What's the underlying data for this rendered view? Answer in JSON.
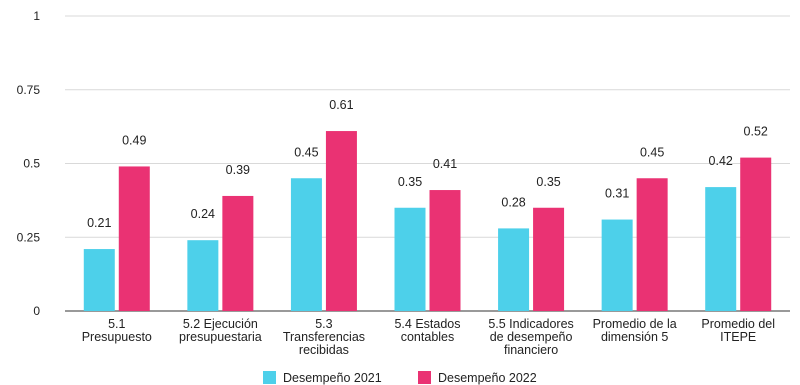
{
  "chart_data": {
    "type": "bar",
    "title": "",
    "xlabel": "",
    "ylabel": "",
    "ylim": [
      0,
      1
    ],
    "yticks": [
      {
        "value": 0,
        "label": "0"
      },
      {
        "value": 0.25,
        "label": "0.25"
      },
      {
        "value": 0.5,
        "label": "0.5"
      },
      {
        "value": 0.75,
        "label": "0.75"
      },
      {
        "value": 1,
        "label": "1"
      }
    ],
    "categories": [
      [
        "5.1",
        "Presupuesto"
      ],
      [
        "5.2 Ejecución",
        "presupuestaria"
      ],
      [
        "5.3",
        "Transferencias",
        "recibidas"
      ],
      [
        "5.4 Estados",
        "contables"
      ],
      [
        "5.5 Indicadores",
        "de desempeño",
        "financiero"
      ],
      [
        "Promedio de la",
        "dimensión 5"
      ],
      [
        "Promedio del",
        "ITEPE"
      ]
    ],
    "series": [
      {
        "name": "Desempeño 2021",
        "color": "#4dd0ea",
        "values": [
          0.21,
          0.24,
          0.45,
          0.35,
          0.28,
          0.31,
          0.42
        ],
        "labels": [
          "0.21",
          "0.24",
          "0.45",
          "0.35",
          "0.28",
          "0.31",
          "0.42"
        ]
      },
      {
        "name": "Desempeño 2022",
        "color": "#ea3273",
        "values": [
          0.49,
          0.39,
          0.61,
          0.41,
          0.35,
          0.45,
          0.52
        ],
        "labels": [
          "0.49",
          "0.39",
          "0.61",
          "0.41",
          "0.35",
          "0.45",
          "0.52"
        ]
      }
    ],
    "grid": true,
    "legend_position": "bottom"
  }
}
